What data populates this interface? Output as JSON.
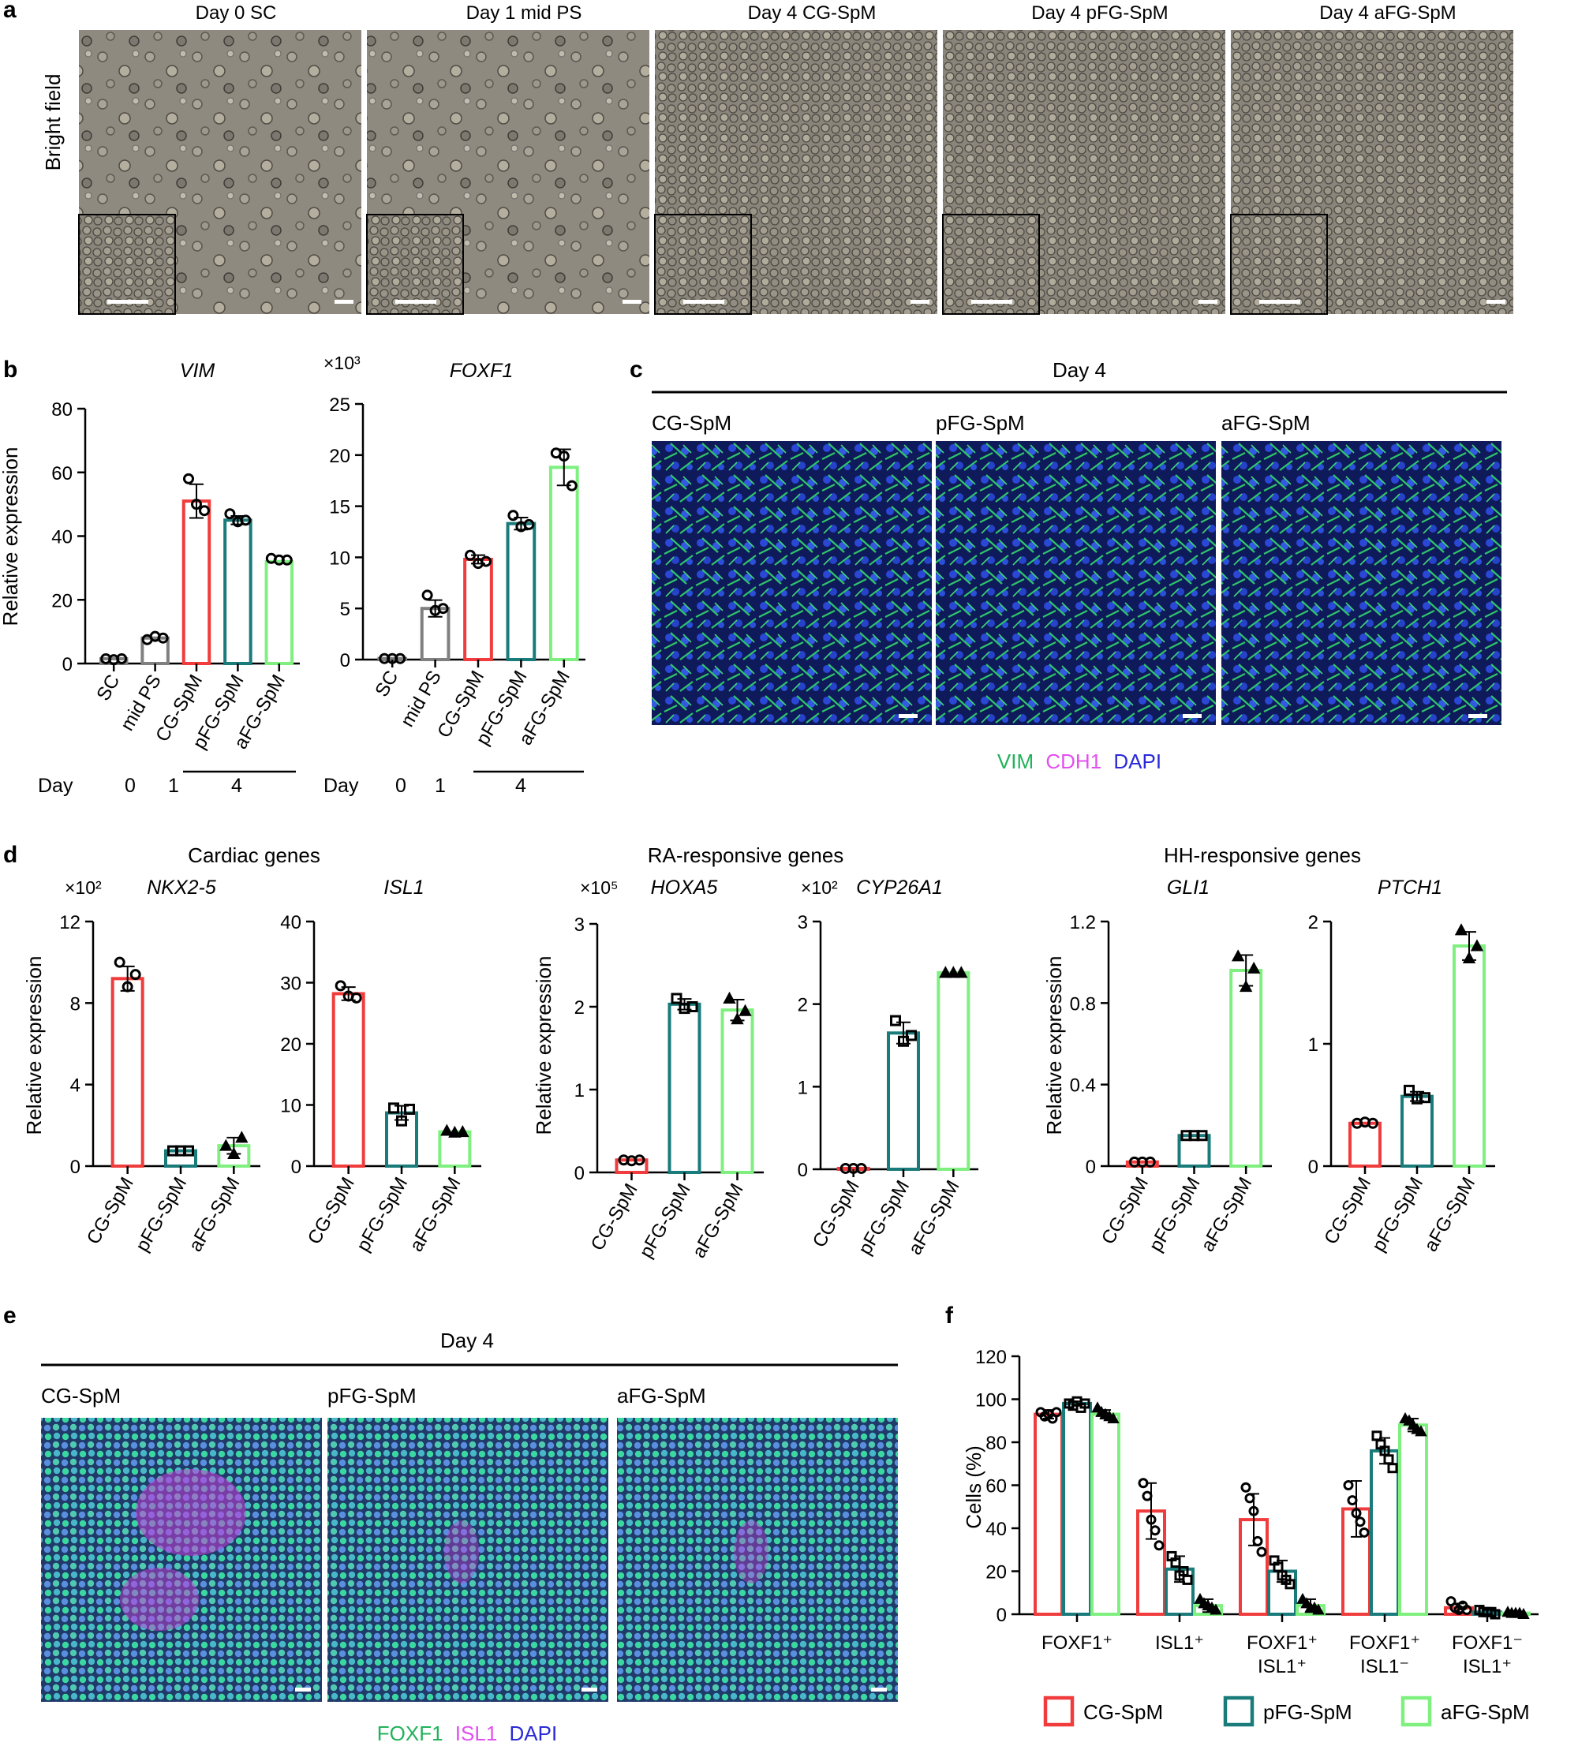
{
  "panel_letters": {
    "a": "a",
    "b": "b",
    "c": "c",
    "d": "d",
    "e": "e",
    "f": "f"
  },
  "panel_a": {
    "row_label": "Bright field",
    "titles": [
      "Day 0 SC",
      "Day 1 mid PS",
      "Day 4 CG-SpM",
      "Day 4 pFG-SpM",
      "Day 4 aFG-SpM"
    ]
  },
  "panel_c": {
    "heading": "Day 4",
    "titles": [
      "CG-SpM",
      "pFG-SpM",
      "aFG-SpM"
    ],
    "legend": [
      {
        "text": "VIM",
        "color": "#21b25a"
      },
      {
        "text": "CDH1",
        "color": "#e34ff0"
      },
      {
        "text": "DAPI",
        "color": "#2a2ad8"
      }
    ]
  },
  "panel_d_groups": [
    "Cardiac genes",
    "RA-responsive genes",
    "HH-responsive genes"
  ],
  "panel_e": {
    "heading": "Day 4",
    "titles": [
      "CG-SpM",
      "pFG-SpM",
      "aFG-SpM"
    ],
    "legend": [
      {
        "text": "FOXF1",
        "color": "#21b25a"
      },
      {
        "text": "ISL1",
        "color": "#e34ff0"
      },
      {
        "text": "DAPI",
        "color": "#2a2ad8"
      }
    ]
  },
  "colors": {
    "SC": "#808080",
    "mid PS": "#808080",
    "CG-SpM": "#f03c3c",
    "pFG-SpM": "#1a7b7b",
    "aFG-SpM": "#7ff07f"
  },
  "chart_data": [
    {
      "id": "b_vim",
      "type": "bar",
      "title": "VIM",
      "ylabel": "Relative expression",
      "multiplier": "",
      "categories": [
        "SC",
        "mid PS",
        "CG-SpM",
        "pFG-SpM",
        "aFG-SpM"
      ],
      "values": [
        1.5,
        8,
        51,
        45,
        32
      ],
      "points": [
        [
          1.5,
          1.2,
          1.5
        ],
        [
          7.5,
          8.5,
          8
        ],
        [
          58,
          50,
          48
        ],
        [
          47,
          44.5,
          45
        ],
        [
          33,
          32.5,
          32.5
        ]
      ],
      "ylim": [
        0,
        80
      ],
      "yticks": [
        0,
        20,
        40,
        60,
        80
      ],
      "marker": "circle",
      "day_row": {
        "label": "Day",
        "values": [
          "0",
          "1",
          "4"
        ]
      }
    },
    {
      "id": "b_foxf1",
      "type": "bar",
      "title": "FOXF1",
      "ylabel": "",
      "multiplier": "×10³",
      "categories": [
        "SC",
        "mid PS",
        "CG-SpM",
        "pFG-SpM",
        "aFG-SpM"
      ],
      "values": [
        0.1,
        5,
        9.8,
        13.3,
        18.8
      ],
      "points": [
        [
          0.1,
          0.1,
          0.1
        ],
        [
          6.3,
          4.8,
          5
        ],
        [
          10.2,
          9.4,
          9.6
        ],
        [
          14.1,
          13,
          13.2
        ],
        [
          20.2,
          19.9,
          17
        ]
      ],
      "ylim": [
        0,
        25
      ],
      "yticks": [
        0,
        5,
        10,
        15,
        20,
        25
      ],
      "marker": "circle",
      "day_row": {
        "label": "Day",
        "values": [
          "0",
          "1",
          "4"
        ]
      }
    },
    {
      "id": "d_nkx25",
      "type": "bar",
      "title": "NKX2-5",
      "ylabel": "Relative expression",
      "multiplier": "×10²",
      "categories": [
        "CG-SpM",
        "pFG-SpM",
        "aFG-SpM"
      ],
      "values": [
        9.2,
        0.75,
        1.0
      ],
      "points": [
        [
          10,
          8.8,
          9.4
        ],
        [
          0.75,
          0.75,
          0.75
        ],
        [
          1.0,
          0.6,
          1.4
        ]
      ],
      "ylim": [
        0,
        12
      ],
      "yticks": [
        0,
        4,
        8,
        12
      ],
      "marker": "mixed"
    },
    {
      "id": "d_isl1",
      "type": "bar",
      "title": "ISL1",
      "ylabel": "",
      "multiplier": "",
      "categories": [
        "CG-SpM",
        "pFG-SpM",
        "aFG-SpM"
      ],
      "values": [
        28.2,
        8.7,
        5.6
      ],
      "points": [
        [
          29.5,
          27.8,
          27.5
        ],
        [
          9.5,
          7.4,
          9.3
        ],
        [
          5.8,
          5.5,
          5.6
        ]
      ],
      "ylim": [
        0,
        40
      ],
      "yticks": [
        0,
        10,
        20,
        30,
        40
      ],
      "marker": "mixed"
    },
    {
      "id": "d_hoxa5",
      "type": "bar",
      "title": "HOXA5",
      "ylabel": "Relative expression",
      "multiplier": "×10⁵",
      "categories": [
        "CG-SpM",
        "pFG-SpM",
        "aFG-SpM"
      ],
      "values": [
        0.15,
        2.03,
        1.96
      ],
      "points": [
        [
          0.15,
          0.14,
          0.15
        ],
        [
          2.1,
          1.98,
          2.0
        ],
        [
          2.1,
          1.85,
          1.95
        ]
      ],
      "ylim": [
        0,
        3
      ],
      "yticks": [
        0,
        1,
        2,
        3
      ],
      "marker": "mixed"
    },
    {
      "id": "d_cyp26a1",
      "type": "bar",
      "title": "CYP26A1",
      "ylabel": "",
      "multiplier": "×10²",
      "categories": [
        "CG-SpM",
        "pFG-SpM",
        "aFG-SpM"
      ],
      "values": [
        0.01,
        1.65,
        2.38
      ],
      "points": [
        [
          0.01,
          0.01,
          0.01
        ],
        [
          1.8,
          1.55,
          1.62
        ],
        [
          2.38,
          2.38,
          2.38
        ]
      ],
      "ylim": [
        0,
        3
      ],
      "yticks": [
        0,
        1,
        2,
        3
      ],
      "marker": "mixed"
    },
    {
      "id": "d_gli1",
      "type": "bar",
      "title": "GLI1",
      "ylabel": "Relative expression",
      "multiplier": "",
      "categories": [
        "CG-SpM",
        "pFG-SpM",
        "aFG-SpM"
      ],
      "values": [
        0.02,
        0.15,
        0.96
      ],
      "points": [
        [
          0.02,
          0.02,
          0.02
        ],
        [
          0.15,
          0.15,
          0.15
        ],
        [
          1.03,
          0.88,
          0.97
        ]
      ],
      "ylim": [
        0,
        1.2
      ],
      "yticks": [
        0,
        0.4,
        0.8,
        1.2
      ],
      "marker": "mixed"
    },
    {
      "id": "d_ptch1",
      "type": "bar",
      "title": "PTCH1",
      "ylabel": "",
      "multiplier": "",
      "categories": [
        "CG-SpM",
        "pFG-SpM",
        "aFG-SpM"
      ],
      "values": [
        0.35,
        0.57,
        1.8
      ],
      "points": [
        [
          0.35,
          0.36,
          0.35
        ],
        [
          0.62,
          0.55,
          0.56
        ],
        [
          1.93,
          1.7,
          1.8
        ]
      ],
      "ylim": [
        0,
        2
      ],
      "yticks": [
        0,
        1,
        2
      ],
      "marker": "mixed"
    },
    {
      "id": "f_cells",
      "type": "bar",
      "title": "",
      "ylabel": "Cells (%)",
      "multiplier": "",
      "categories": [
        "FOXF1⁺",
        "ISL1⁺",
        "FOXF1⁺ ISL1⁺",
        "FOXF1⁺ ISL1⁻",
        "FOXF1⁻ ISL1⁺"
      ],
      "series": [
        {
          "name": "CG-SpM",
          "values": [
            93,
            48,
            44,
            49,
            3
          ],
          "err": [
            2,
            13,
            12,
            13,
            2
          ],
          "points": [
            [
              94,
              92,
              93,
              91,
              94
            ],
            [
              61,
              55,
              44,
              39,
              32
            ],
            [
              59,
              54,
              48,
              34,
              29
            ],
            [
              60,
              53,
              47,
              43,
              38
            ],
            [
              6,
              3,
              2,
              4,
              2
            ]
          ]
        },
        {
          "name": "pFG-SpM",
          "values": [
            98,
            21,
            20,
            76,
            1
          ],
          "err": [
            1,
            6,
            5,
            6,
            1
          ],
          "points": [
            [
              98,
              97,
              99,
              96,
              98
            ],
            [
              27,
              24,
              18,
              20,
              16
            ],
            [
              25,
              22,
              18,
              16,
              14
            ],
            [
              83,
              79,
              76,
              72,
              68
            ],
            [
              2,
              1,
              1,
              1,
              0
            ]
          ]
        },
        {
          "name": "aFG-SpM",
          "values": [
            93,
            4,
            4,
            88,
            0.5
          ],
          "err": [
            2,
            3,
            3,
            3,
            0.5
          ],
          "points": [
            [
              96,
              94,
              93,
              92,
              91
            ],
            [
              7,
              5,
              4,
              3,
              2
            ],
            [
              7,
              5,
              3,
              3,
              2
            ],
            [
              91,
              90,
              88,
              86,
              85
            ],
            [
              1,
              0.5,
              0.5,
              0.5,
              0
            ]
          ]
        }
      ],
      "ylim": [
        0,
        120
      ],
      "yticks": [
        0,
        20,
        40,
        60,
        80,
        100,
        120
      ],
      "legend_position": "bottom"
    }
  ]
}
